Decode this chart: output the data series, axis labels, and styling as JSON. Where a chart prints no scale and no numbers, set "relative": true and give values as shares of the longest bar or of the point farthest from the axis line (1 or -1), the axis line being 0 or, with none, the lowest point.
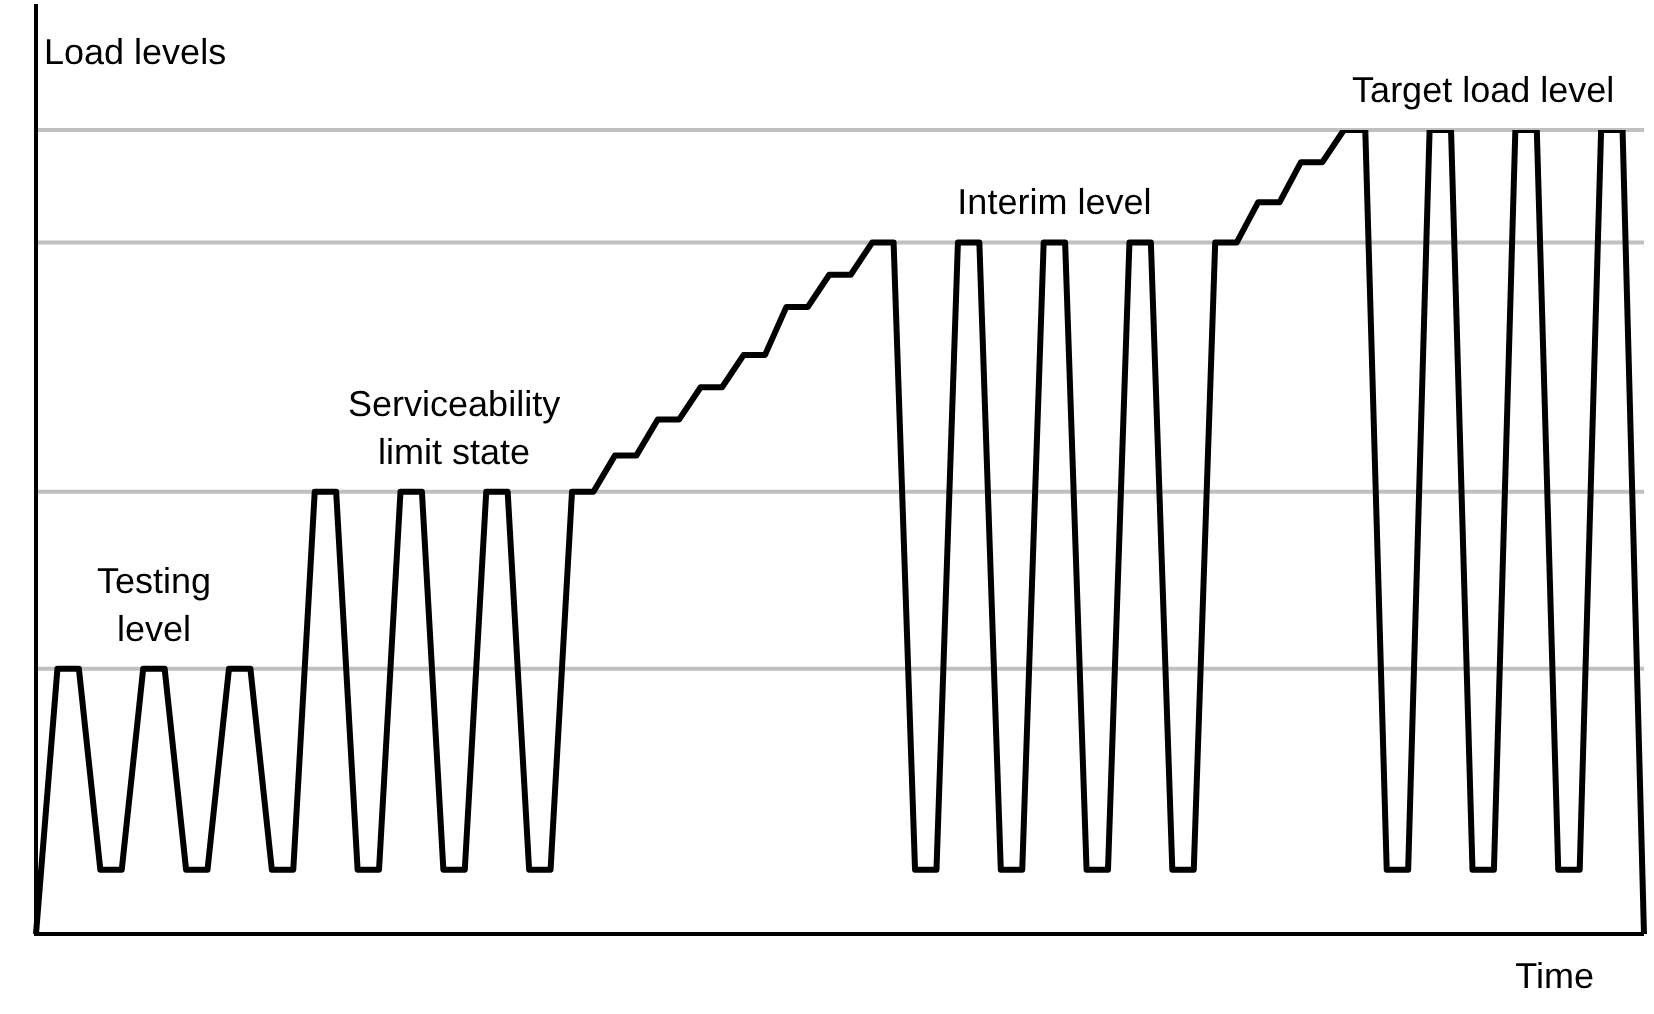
{
  "chart_data": {
    "type": "line",
    "relative": true,
    "xlabel": "Time",
    "ylabel": "Load levels",
    "legend": false,
    "marker": "none",
    "line_style": "solid",
    "categories": [
      null,
      null,
      null,
      null,
      null,
      null,
      null,
      null,
      null,
      null,
      null,
      null,
      null,
      null,
      null,
      null,
      null,
      null,
      null,
      null,
      null,
      null,
      null,
      null,
      null,
      null,
      null,
      null,
      null,
      null,
      null,
      null,
      null,
      null,
      null,
      null,
      null,
      null,
      null,
      null,
      null,
      null,
      null,
      null,
      null,
      null,
      null,
      null,
      null,
      null,
      null,
      null,
      null,
      null,
      null,
      null,
      null,
      null,
      null,
      null,
      null,
      null,
      null,
      null,
      null,
      null,
      null,
      null,
      null,
      null,
      null,
      null,
      null,
      null,
      null,
      null
    ],
    "series": [
      {
        "color": "#000000",
        "values": [
          0,
          0.33,
          0.33,
          0.08,
          0.08,
          0.33,
          0.33,
          0.08,
          0.08,
          0.33,
          0.33,
          0.08,
          0.08,
          0.55,
          0.55,
          0.08,
          0.08,
          0.55,
          0.55,
          0.08,
          0.08,
          0.55,
          0.55,
          0.08,
          0.08,
          0.55,
          0.55,
          0.595,
          0.595,
          0.64,
          0.64,
          0.68,
          0.68,
          0.72,
          0.72,
          0.78,
          0.78,
          0.82,
          0.82,
          0.86,
          0.86,
          0.08,
          0.08,
          0.86,
          0.86,
          0.08,
          0.08,
          0.86,
          0.86,
          0.08,
          0.08,
          0.86,
          0.86,
          0.08,
          0.08,
          0.86,
          0.86,
          0.91,
          0.91,
          0.96,
          0.96,
          1,
          1,
          0.08,
          0.08,
          1,
          1,
          0.08,
          0.08,
          1,
          1,
          0.08,
          0.08,
          1,
          1,
          0
        ]
      }
    ],
    "ref_lines": [
      {
        "axis": "y",
        "value": 0.33,
        "color": "#c0c0c0",
        "label": "Testing level"
      },
      {
        "axis": "y",
        "value": 0.55,
        "color": "#c0c0c0",
        "label": "Serviceability limit state"
      },
      {
        "axis": "y",
        "value": 0.86,
        "color": "#c0c0c0",
        "label": "Interim level"
      },
      {
        "axis": "y",
        "value": 1,
        "color": "#c0c0c0",
        "label": "Target load level"
      }
    ]
  }
}
